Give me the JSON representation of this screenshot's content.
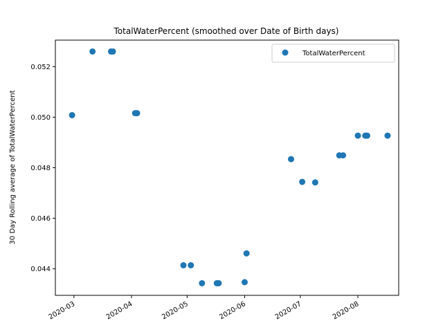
{
  "chart_data": {
    "type": "scatter",
    "title": "TotalWaterPercent (smoothed over Date of Birth days)",
    "xlabel": "",
    "ylabel": "30 Day Rolling average of TotalWaterPercent",
    "x_type": "date",
    "xlim": [
      "2020-02-20",
      "2020-08-23"
    ],
    "ylim": [
      0.04295,
      0.05305
    ],
    "x_ticks": [
      "2020-03",
      "2020-04",
      "2020-05",
      "2020-06",
      "2020-07",
      "2020-08"
    ],
    "x_tick_values": [
      "2020-03-01",
      "2020-04-01",
      "2020-05-01",
      "2020-06-01",
      "2020-07-01",
      "2020-08-01"
    ],
    "y_ticks": [
      "0.044",
      "0.046",
      "0.048",
      "0.050",
      "0.052"
    ],
    "y_tick_values": [
      0.044,
      0.046,
      0.048,
      0.05,
      0.052
    ],
    "x_tick_rotation": 30,
    "grid": false,
    "legend": "top-right",
    "series": [
      {
        "name": "TotalWaterPercent",
        "color": "#1f77b4",
        "marker": "circle",
        "points": [
          {
            "x": "2020-02-29",
            "y": 0.05008
          },
          {
            "x": "2020-03-11",
            "y": 0.0526
          },
          {
            "x": "2020-03-21",
            "y": 0.0526
          },
          {
            "x": "2020-03-22",
            "y": 0.0526
          },
          {
            "x": "2020-04-03",
            "y": 0.05016
          },
          {
            "x": "2020-04-04",
            "y": 0.05016
          },
          {
            "x": "2020-04-29",
            "y": 0.04414
          },
          {
            "x": "2020-05-03",
            "y": 0.04414
          },
          {
            "x": "2020-05-09",
            "y": 0.04343
          },
          {
            "x": "2020-05-17",
            "y": 0.04343
          },
          {
            "x": "2020-05-18",
            "y": 0.04343
          },
          {
            "x": "2020-06-01",
            "y": 0.04347
          },
          {
            "x": "2020-06-02",
            "y": 0.04461
          },
          {
            "x": "2020-06-26",
            "y": 0.04834
          },
          {
            "x": "2020-07-02",
            "y": 0.04744
          },
          {
            "x": "2020-07-09",
            "y": 0.04742
          },
          {
            "x": "2020-07-22",
            "y": 0.04849
          },
          {
            "x": "2020-07-24",
            "y": 0.04849
          },
          {
            "x": "2020-08-01",
            "y": 0.04927
          },
          {
            "x": "2020-08-05",
            "y": 0.04927
          },
          {
            "x": "2020-08-06",
            "y": 0.04927
          },
          {
            "x": "2020-08-17",
            "y": 0.04927
          }
        ]
      }
    ]
  }
}
